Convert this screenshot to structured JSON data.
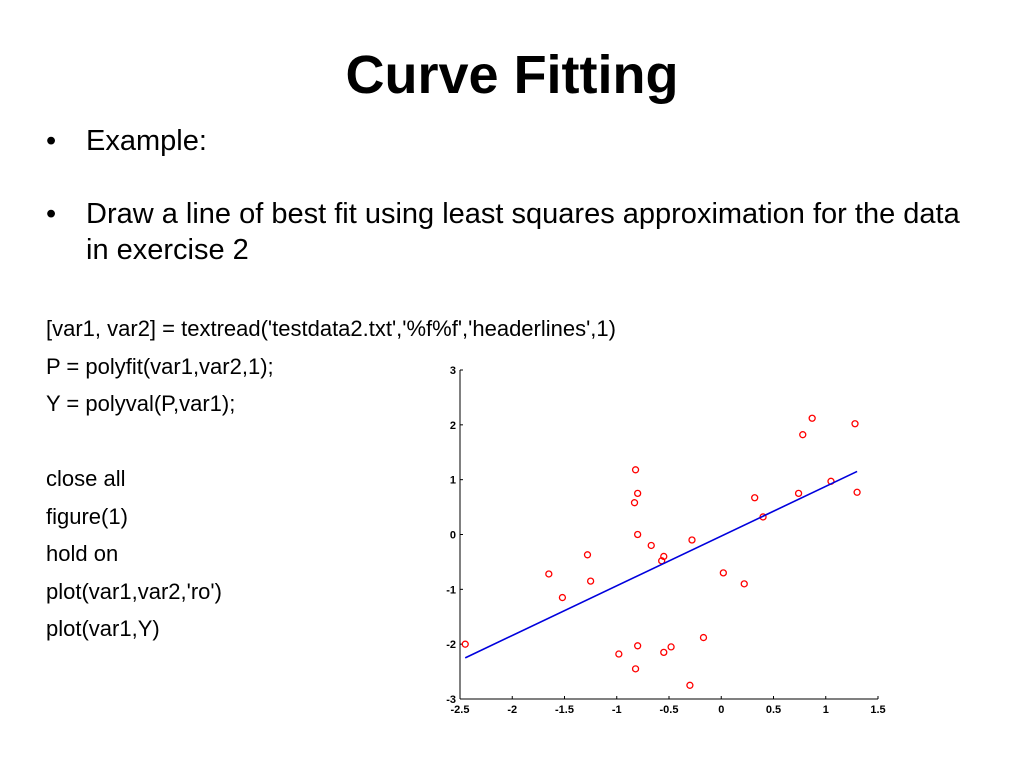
{
  "slide": {
    "title": "Curve Fitting",
    "bullets": [
      {
        "marker": "•",
        "text": "Example:"
      },
      {
        "marker": "•",
        "text": "Draw a line of best fit using least squares approximation for the data in exercise 2"
      }
    ],
    "code_lines": [
      "[var1, var2] = textread('testdata2.txt','%f%f','headerlines',1)",
      "P = polyfit(var1,var2,1);",
      "Y = polyval(P,var1);",
      "",
      "close all",
      "figure(1)",
      "hold on",
      "plot(var1,var2,'ro')",
      "plot(var1,Y)"
    ]
  },
  "chart_data": {
    "type": "scatter",
    "title": "",
    "xlabel": "",
    "ylabel": "",
    "xlim": [
      -2.5,
      1.5
    ],
    "ylim": [
      -3,
      3
    ],
    "x_ticks": [
      "-2.5",
      "-2",
      "-1.5",
      "-1",
      "-0.5",
      "0",
      "0.5",
      "1",
      "1.5"
    ],
    "y_ticks": [
      "3",
      "2",
      "1",
      "0",
      "-1",
      "-2",
      "-3"
    ],
    "grid": false,
    "series": [
      {
        "marker": "circle",
        "color": "#ff0000",
        "points": [
          [
            -2.45,
            -2.0
          ],
          [
            -1.65,
            -0.72
          ],
          [
            -1.52,
            -1.15
          ],
          [
            -1.28,
            -0.37
          ],
          [
            -1.25,
            -0.85
          ],
          [
            -0.98,
            -2.18
          ],
          [
            -0.82,
            1.18
          ],
          [
            -0.83,
            0.58
          ],
          [
            -0.8,
            0.75
          ],
          [
            -0.8,
            0.0
          ],
          [
            -0.8,
            -2.03
          ],
          [
            -0.82,
            -2.45
          ],
          [
            -0.67,
            -0.2
          ],
          [
            -0.55,
            -0.4
          ],
          [
            -0.57,
            -0.48
          ],
          [
            -0.55,
            -2.15
          ],
          [
            -0.48,
            -2.05
          ],
          [
            -0.28,
            -0.1
          ],
          [
            -0.3,
            -2.75
          ],
          [
            -0.17,
            -1.88
          ],
          [
            0.02,
            -0.7
          ],
          [
            0.22,
            -0.9
          ],
          [
            0.32,
            0.67
          ],
          [
            0.4,
            0.32
          ],
          [
            0.74,
            0.75
          ],
          [
            0.78,
            1.82
          ],
          [
            0.87,
            2.12
          ],
          [
            1.05,
            0.97
          ],
          [
            1.28,
            2.02
          ],
          [
            1.3,
            0.77
          ]
        ]
      },
      {
        "marker": "line",
        "color": "#0000dd",
        "points": [
          [
            -2.45,
            -2.25
          ],
          [
            1.3,
            1.15
          ]
        ]
      }
    ]
  }
}
